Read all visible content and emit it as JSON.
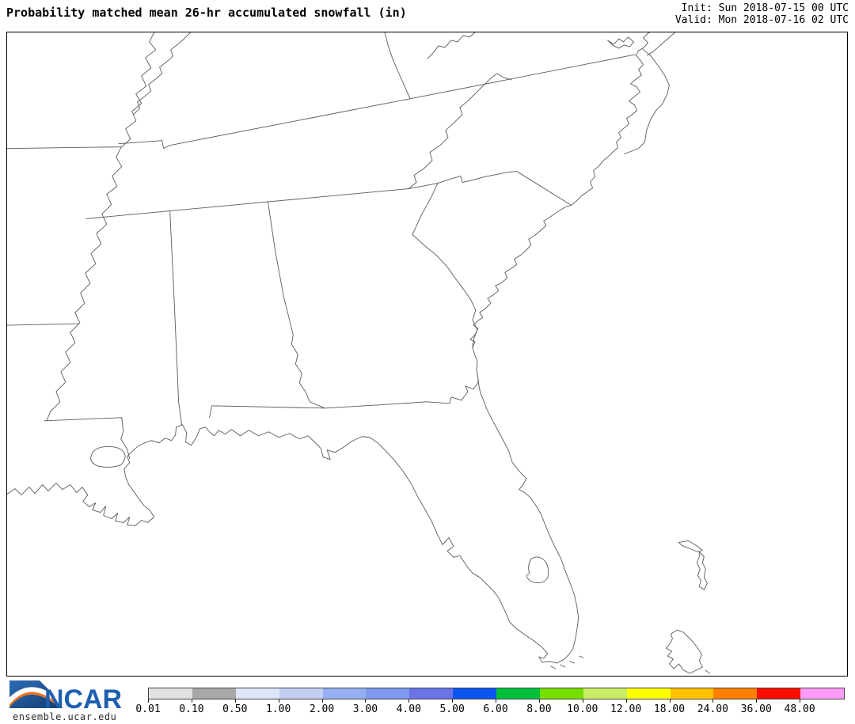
{
  "header": {
    "title": "Probability matched mean 26-hr accumulated snowfall (in)",
    "init_line": "Init: Sun 2018-07-15 00 UTC",
    "valid_line": "Valid: Mon 2018-07-16 02 UTC"
  },
  "footer": {
    "logo_text": "NCAR",
    "website": "ensemble.ucar.edu",
    "logo_blue": "#1c5fae",
    "logo_dark_blue": "#123a6d",
    "logo_orange": "#e87722"
  },
  "colorbar": {
    "levels": [
      "0.01",
      "0.10",
      "0.50",
      "1.00",
      "2.00",
      "3.00",
      "4.00",
      "5.00",
      "6.00",
      "8.00",
      "10.00",
      "12.00",
      "18.00",
      "24.00",
      "36.00",
      "48.00"
    ],
    "colors": [
      "#e1e1e1",
      "#a8a8a8",
      "#dde5f9",
      "#c3cef5",
      "#96aff2",
      "#7e99ef",
      "#6b73e8",
      "#0d55f0",
      "#00c03c",
      "#77df00",
      "#c8ee66",
      "#ffff00",
      "#ffc100",
      "#ff8000",
      "#f80e00",
      "#fd9bf6"
    ],
    "outline_color": "#444444"
  }
}
